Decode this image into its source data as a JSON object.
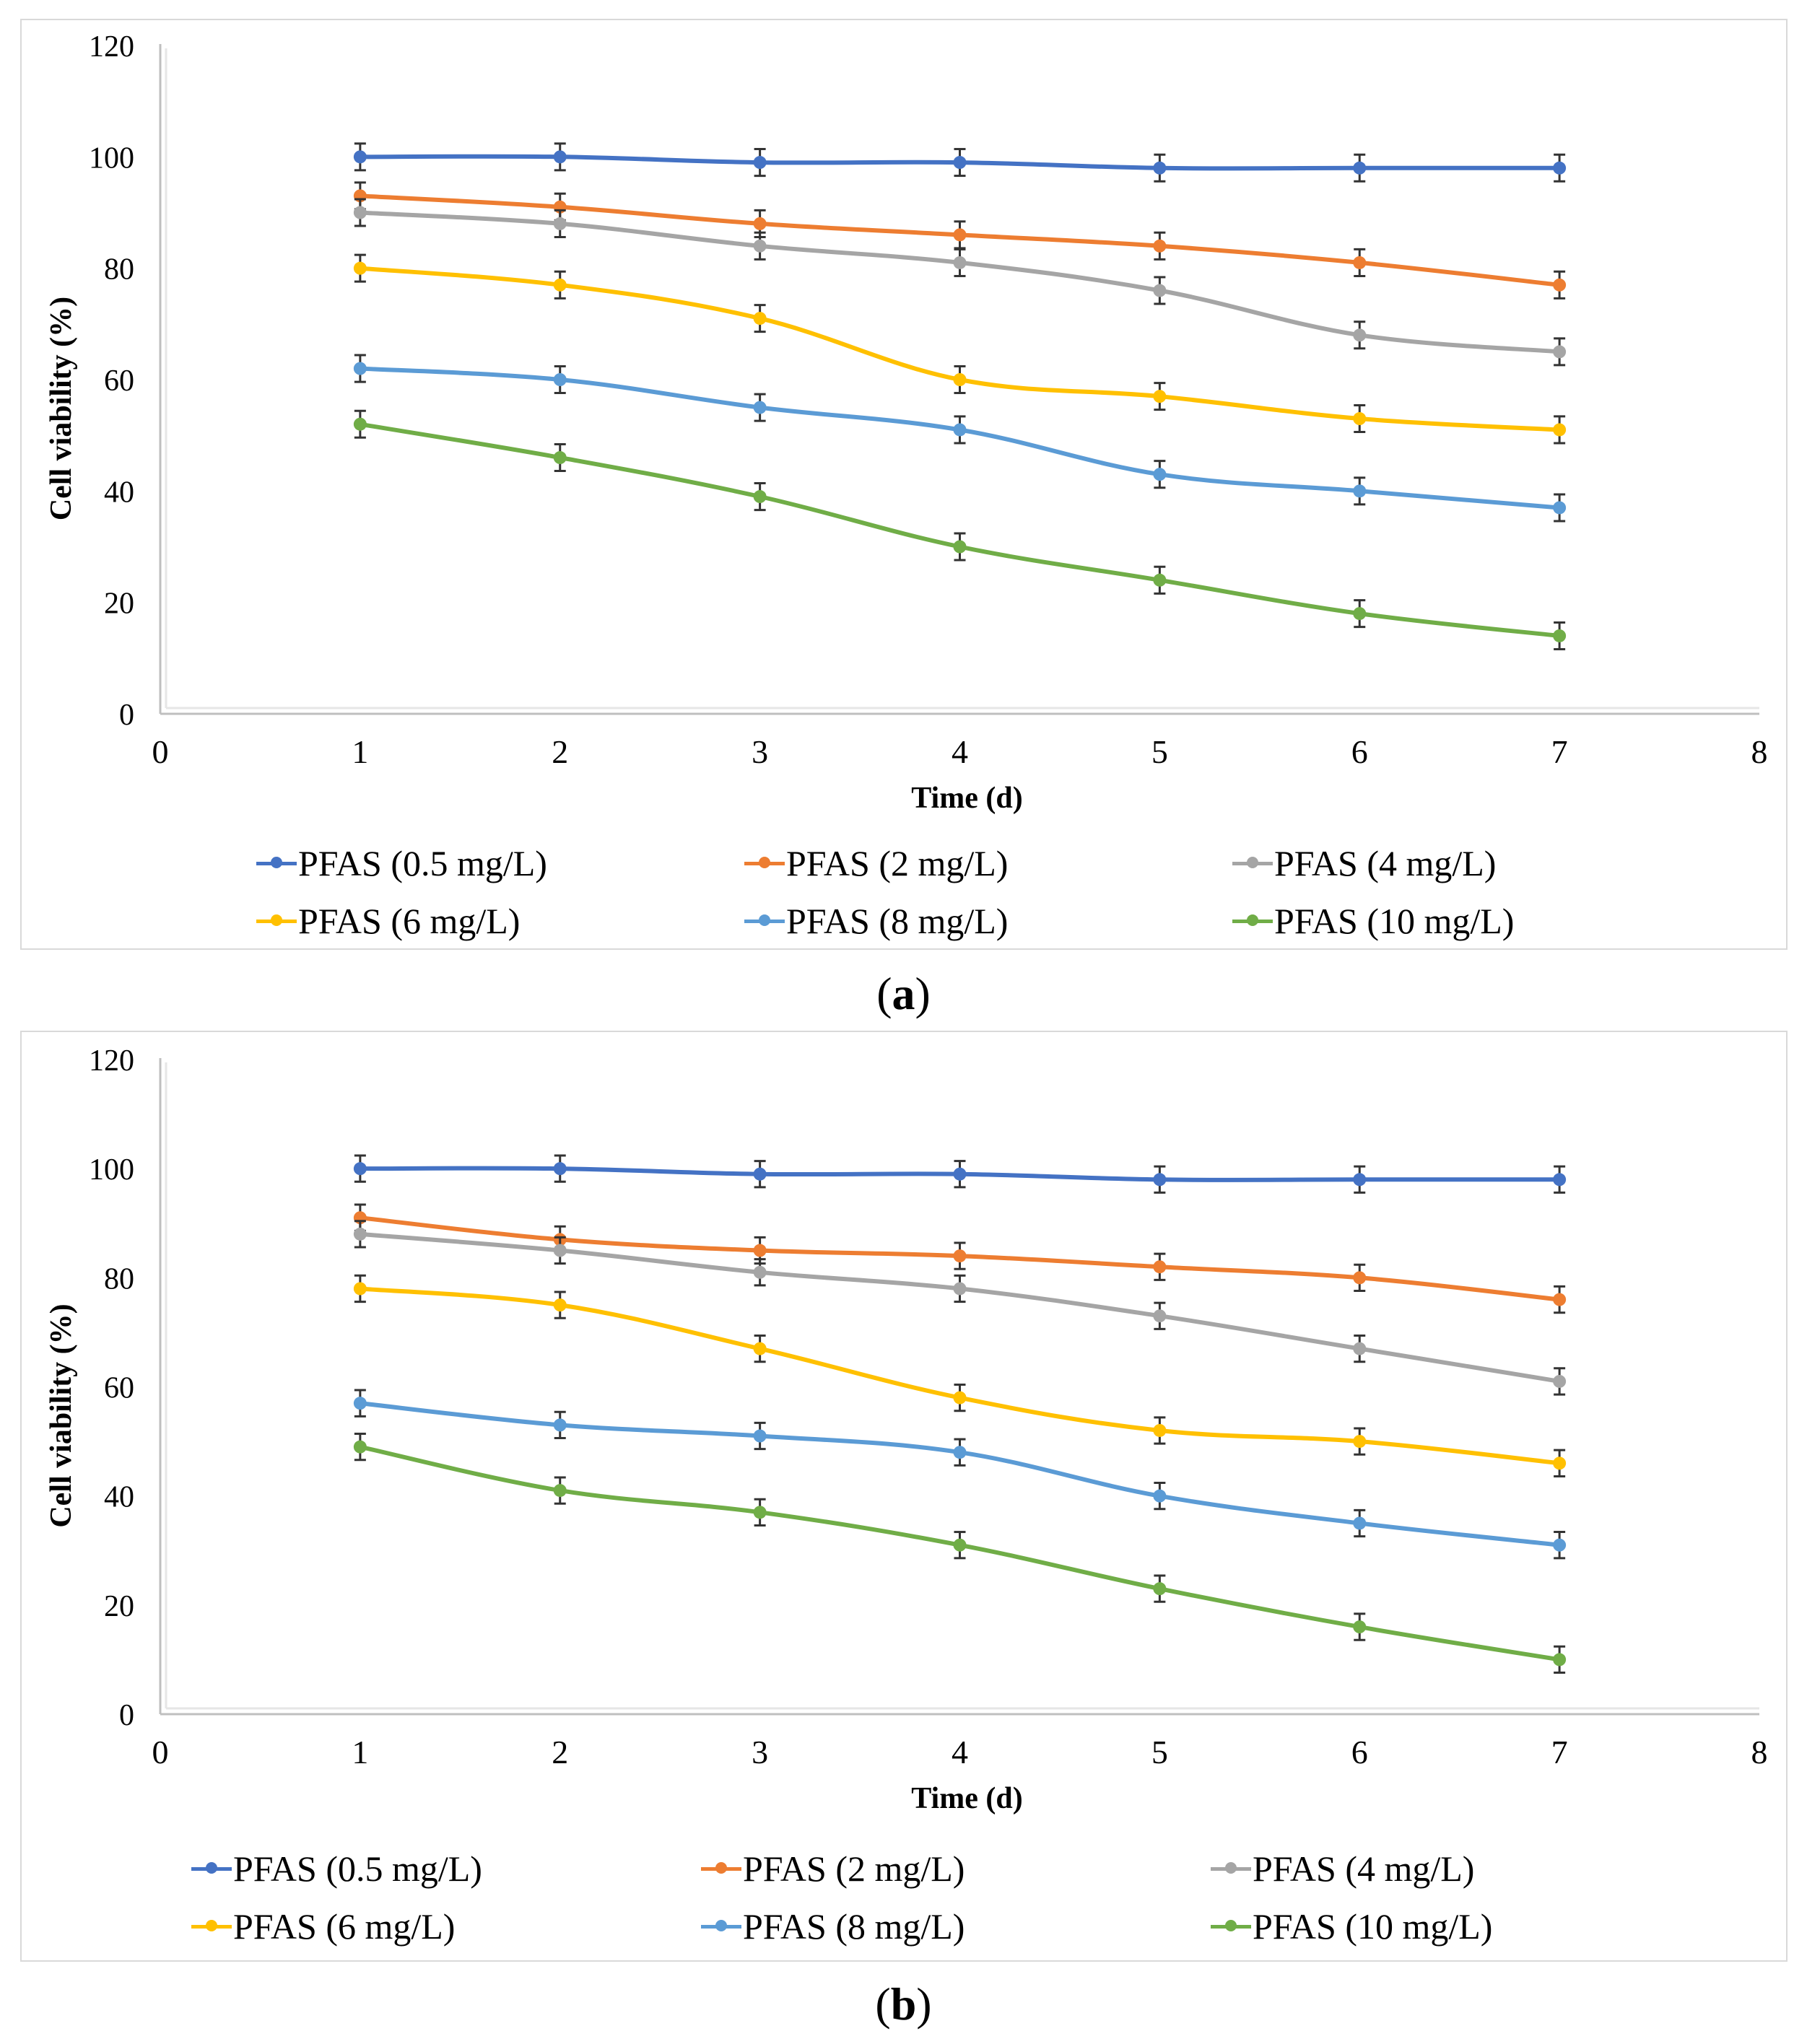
{
  "chart_data": [
    {
      "type": "line",
      "panel_label": "a",
      "title": "",
      "xlabel": "Time (d)",
      "ylabel": "Cell viability (%)",
      "xlim": [
        0,
        8
      ],
      "ylim": [
        0,
        120
      ],
      "x_ticks": [
        "0",
        "1",
        "2",
        "3",
        "4",
        "5",
        "6",
        "7",
        "8"
      ],
      "y_ticks": [
        "0",
        "20",
        "40",
        "60",
        "80",
        "100",
        "120"
      ],
      "grid": false,
      "legend_position": "bottom",
      "x": [
        1,
        2,
        3,
        4,
        5,
        6,
        7
      ],
      "series": [
        {
          "name": "PFAS (0.5 mg/L)",
          "color": "#4472C4",
          "values": [
            100,
            100,
            99,
            99,
            98,
            98,
            98
          ]
        },
        {
          "name": "PFAS (2 mg/L)",
          "color": "#ED7D31",
          "values": [
            93,
            91,
            88,
            86,
            84,
            81,
            77
          ]
        },
        {
          "name": "PFAS (4 mg/L)",
          "color": "#A5A5A5",
          "values": [
            90,
            88,
            84,
            81,
            76,
            68,
            65
          ]
        },
        {
          "name": "PFAS (6 mg/L)",
          "color": "#FFC000",
          "values": [
            80,
            77,
            71,
            60,
            57,
            53,
            51
          ]
        },
        {
          "name": "PFAS (8 mg/L)",
          "color": "#5B9BD5",
          "values": [
            62,
            60,
            55,
            51,
            43,
            40,
            37
          ]
        },
        {
          "name": "PFAS (10 mg/L)",
          "color": "#70AD47",
          "values": [
            52,
            46,
            39,
            30,
            24,
            18,
            14
          ]
        }
      ]
    },
    {
      "type": "line",
      "panel_label": "b",
      "title": "",
      "xlabel": "Time (d)",
      "ylabel": "Cell viability (%)",
      "xlim": [
        0,
        8
      ],
      "ylim": [
        0,
        120
      ],
      "x_ticks": [
        "0",
        "1",
        "2",
        "3",
        "4",
        "5",
        "6",
        "7",
        "8"
      ],
      "y_ticks": [
        "0",
        "20",
        "40",
        "60",
        "80",
        "100",
        "120"
      ],
      "grid": false,
      "legend_position": "bottom",
      "x": [
        1,
        2,
        3,
        4,
        5,
        6,
        7
      ],
      "series": [
        {
          "name": "PFAS (0.5 mg/L)",
          "color": "#4472C4",
          "values": [
            100,
            100,
            99,
            99,
            98,
            98,
            98
          ]
        },
        {
          "name": "PFAS (2 mg/L)",
          "color": "#ED7D31",
          "values": [
            91,
            87,
            85,
            84,
            82,
            80,
            76
          ]
        },
        {
          "name": "PFAS (4 mg/L)",
          "color": "#A5A5A5",
          "values": [
            88,
            85,
            81,
            78,
            73,
            67,
            61
          ]
        },
        {
          "name": "PFAS (6 mg/L)",
          "color": "#FFC000",
          "values": [
            78,
            75,
            67,
            58,
            52,
            50,
            46
          ]
        },
        {
          "name": "PFAS (8 mg/L)",
          "color": "#5B9BD5",
          "values": [
            57,
            53,
            51,
            48,
            40,
            35,
            31
          ]
        },
        {
          "name": "PFAS (10 mg/L)",
          "color": "#70AD47",
          "values": [
            49,
            41,
            37,
            31,
            23,
            16,
            10
          ]
        }
      ]
    }
  ],
  "captions": {
    "a": {
      "open": "(",
      "label": "a",
      "close": ")"
    },
    "b": {
      "open": "(",
      "label": "b",
      "close": ")"
    }
  }
}
